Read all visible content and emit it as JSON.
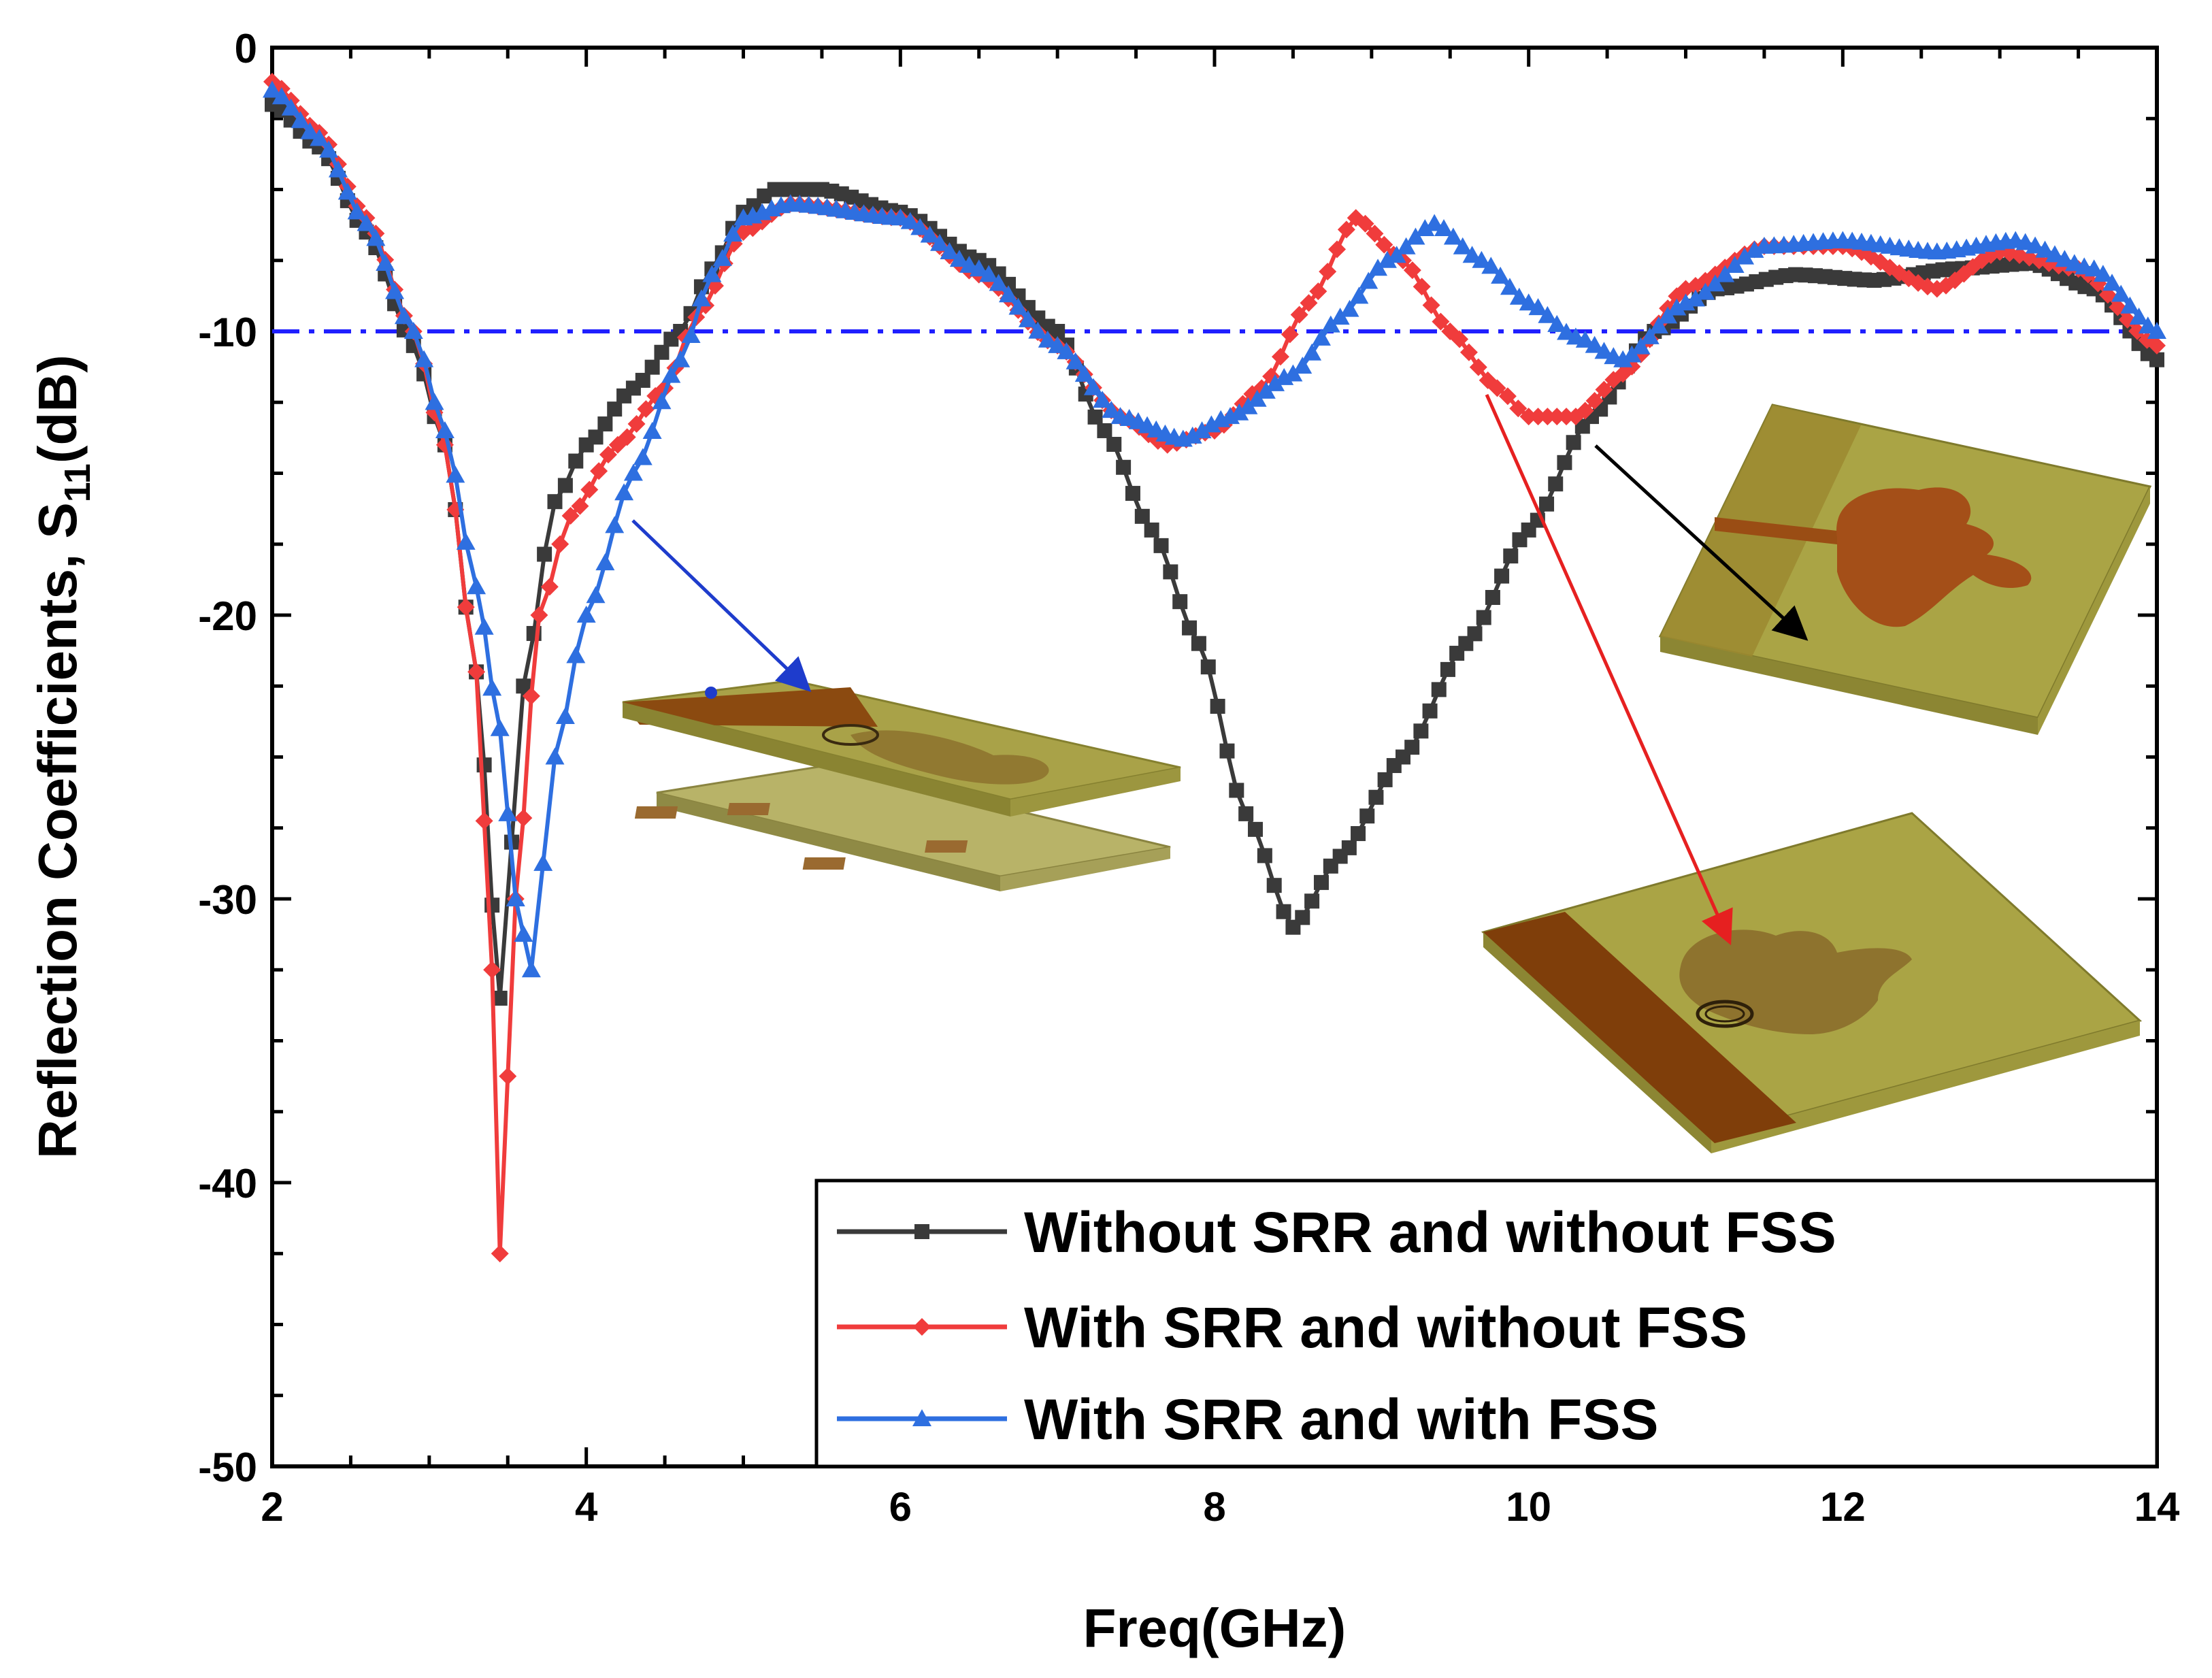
{
  "chart_data": {
    "type": "line",
    "title": "",
    "xlabel": "Freq(GHz)",
    "ylabel": "Reflection Coefficients, S11(dB)",
    "ylabel_main": "Reflection Coefficients, S",
    "ylabel_sub": "11",
    "ylabel_unit": "(dB)",
    "xlim": [
      2,
      14
    ],
    "ylim": [
      -50,
      0
    ],
    "x_ticks": [
      "2",
      "4",
      "6",
      "8",
      "10",
      "12",
      "14"
    ],
    "y_ticks": [
      "0",
      "-10",
      "-20",
      "-30",
      "-40",
      "-50"
    ],
    "grid": false,
    "reference_line": {
      "y": -10,
      "style": "dash-dot",
      "color": "#1f1fff"
    },
    "legend_position": "bottom-right",
    "series": [
      {
        "name": "Without SRR and without FSS",
        "color": "#3a3a3a",
        "marker": "square",
        "x": [
          2.0,
          2.3,
          2.6,
          2.9,
          3.1,
          3.3,
          3.45,
          3.6,
          3.8,
          4.0,
          4.3,
          4.6,
          4.8,
          5.0,
          5.2,
          5.5,
          6.0,
          6.5,
          7.0,
          7.3,
          7.6,
          7.9,
          8.2,
          8.5,
          8.8,
          9.2,
          9.6,
          10.0,
          10.4,
          10.8,
          11.2,
          11.7,
          12.2,
          12.7,
          13.2,
          13.6,
          14.0
        ],
        "y": [
          -2.0,
          -3.5,
          -6.5,
          -10.5,
          -14.0,
          -22.0,
          -33.5,
          -22.5,
          -16.0,
          -14.0,
          -12.0,
          -10.0,
          -7.8,
          -5.8,
          -5.0,
          -5.0,
          -5.8,
          -7.5,
          -10.0,
          -13.5,
          -17.0,
          -21.0,
          -27.0,
          -31.0,
          -28.5,
          -25.0,
          -21.0,
          -17.0,
          -13.0,
          -10.0,
          -8.5,
          -8.0,
          -8.2,
          -7.8,
          -7.6,
          -8.5,
          -11.0
        ]
      },
      {
        "name": "With SRR and without FSS",
        "color": "#f03c3c",
        "marker": "diamond",
        "x": [
          2.0,
          2.3,
          2.6,
          2.9,
          3.1,
          3.3,
          3.4,
          3.45,
          3.55,
          3.7,
          3.9,
          4.2,
          4.5,
          4.7,
          5.0,
          5.3,
          6.0,
          6.5,
          7.0,
          7.4,
          7.7,
          8.0,
          8.3,
          8.6,
          8.9,
          9.2,
          9.5,
          9.8,
          10.0,
          10.3,
          10.6,
          11.0,
          11.5,
          12.0,
          12.6,
          13.0,
          13.5,
          14.0
        ],
        "y": [
          -1.2,
          -3.0,
          -6.0,
          -10.0,
          -14.0,
          -22.0,
          -32.5,
          -42.5,
          -30.0,
          -20.0,
          -16.5,
          -14.0,
          -12.0,
          -9.5,
          -6.5,
          -5.5,
          -6.0,
          -8.0,
          -10.5,
          -13.0,
          -14.0,
          -13.5,
          -12.0,
          -9.0,
          -6.0,
          -7.5,
          -10.0,
          -12.0,
          -13.0,
          -13.0,
          -11.5,
          -8.5,
          -7.0,
          -7.0,
          -8.5,
          -7.2,
          -7.8,
          -10.5
        ]
      },
      {
        "name": "With SRR and with FSS",
        "color": "#2e6fe0",
        "marker": "triangle",
        "x": [
          2.0,
          2.3,
          2.6,
          2.9,
          3.1,
          3.3,
          3.45,
          3.55,
          3.65,
          3.8,
          4.0,
          4.3,
          4.6,
          4.8,
          5.0,
          5.3,
          6.0,
          6.5,
          7.0,
          7.4,
          7.8,
          8.1,
          8.5,
          8.8,
          9.1,
          9.4,
          9.7,
          10.0,
          10.3,
          10.6,
          11.0,
          11.5,
          12.0,
          12.6,
          13.1,
          13.6,
          14.0
        ],
        "y": [
          -1.5,
          -3.2,
          -6.2,
          -10.0,
          -13.5,
          -19.0,
          -24.0,
          -30.0,
          -32.5,
          -25.0,
          -20.0,
          -15.0,
          -11.0,
          -8.0,
          -6.0,
          -5.5,
          -6.0,
          -7.8,
          -10.5,
          -13.0,
          -13.8,
          -13.0,
          -11.5,
          -9.5,
          -7.5,
          -6.2,
          -7.5,
          -9.0,
          -10.2,
          -11.0,
          -9.0,
          -7.0,
          -6.8,
          -7.2,
          -6.8,
          -7.8,
          -10.0
        ]
      }
    ]
  }
}
